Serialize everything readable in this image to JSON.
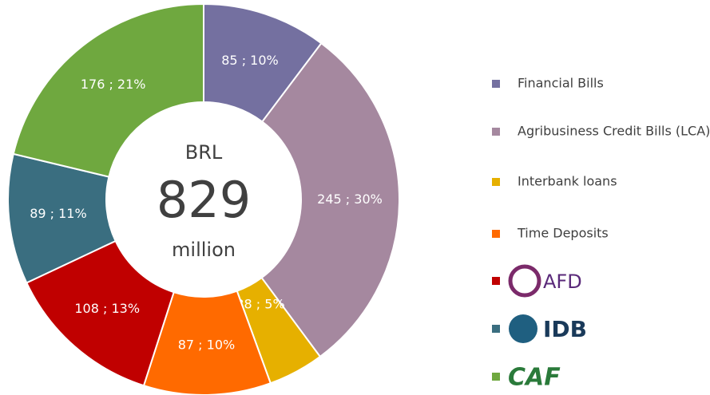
{
  "chart_data": {
    "type": "donut",
    "center_text": {
      "top": "BRL",
      "value": 829,
      "bottom": "million"
    },
    "categories": [
      "Financial Bills",
      "Agribusiness Credit Bills (LCA)",
      "Interbank loans",
      "Time Deposits",
      "AFD",
      "IDB",
      "CAF"
    ],
    "values": [
      85,
      245,
      38,
      87,
      108,
      89,
      176
    ],
    "value_labels": [
      "85 ; 10%",
      "245 ; 30%",
      "38 ; 5%",
      "87 ; 10%",
      "108 ; 13%",
      "89 ; 11%",
      "176 ; 21%"
    ],
    "colors": [
      "#7470a0",
      "#a5889f",
      "#e6b000",
      "#ff6a00",
      "#c00000",
      "#3a6e80",
      "#6fa83f"
    ],
    "legend": "right"
  }
}
